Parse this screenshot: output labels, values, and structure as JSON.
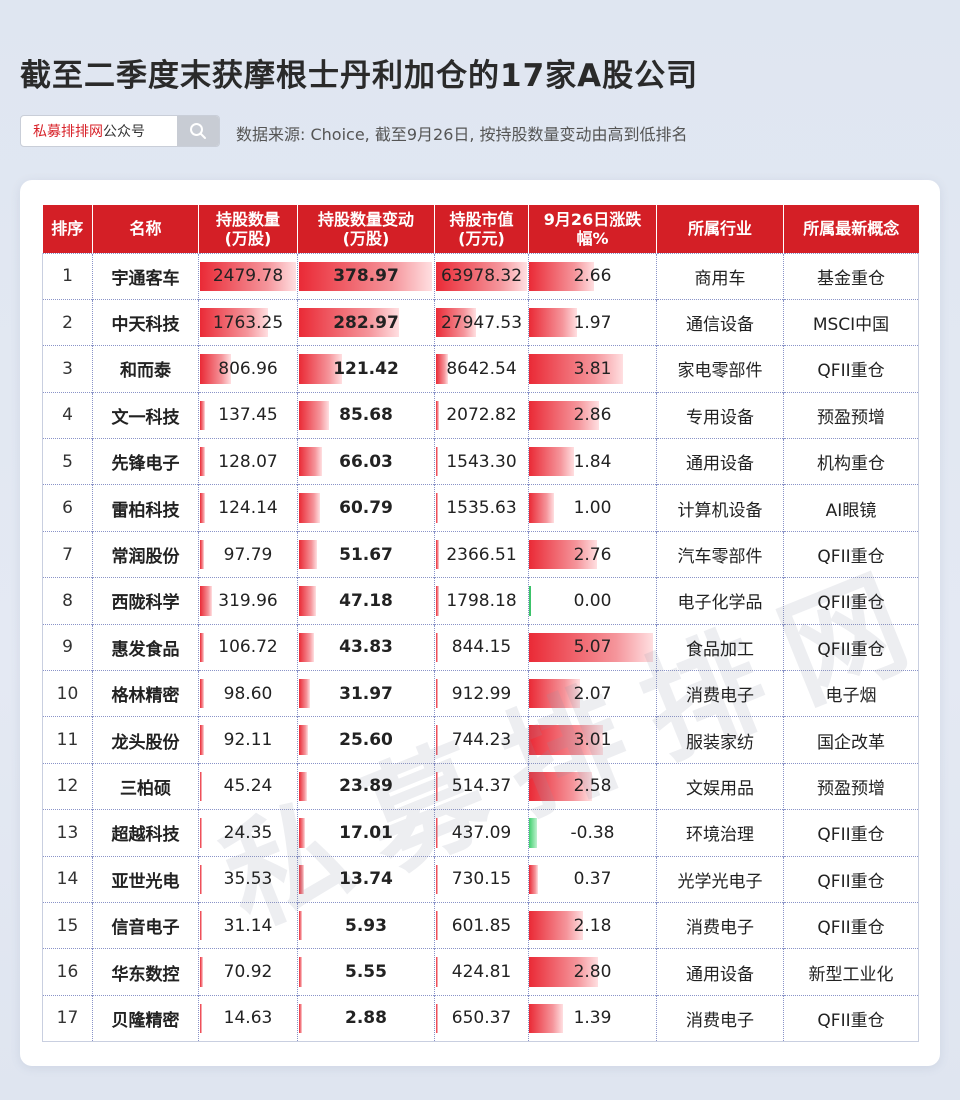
{
  "title": "截至二季度末获摩根士丹利加仓的17家A股公司",
  "search": {
    "brand": "私募排排网",
    "suffix": "公众号"
  },
  "source": "数据来源: Choice, 截至9月26日, 按持股数量变动由高到低排名",
  "watermark": "私募排排网",
  "colors": {
    "header": "#d41f26",
    "positive_bar": "#ea2a36",
    "negative_bar": "#4fd27a"
  },
  "table": {
    "headers": [
      {
        "line1": "排序",
        "line2": ""
      },
      {
        "line1": "名称",
        "line2": ""
      },
      {
        "line1": "持股数量",
        "line2": "(万股)"
      },
      {
        "line1": "持股数量变动",
        "line2": "(万股)"
      },
      {
        "line1": "持股市值",
        "line2": "(万元)"
      },
      {
        "line1": "9月26日涨跌",
        "line2": "幅%"
      },
      {
        "line1": "所属行业",
        "line2": ""
      },
      {
        "line1": "所属最新概念",
        "line2": ""
      }
    ],
    "rows": [
      {
        "rank": "1",
        "name": "宇通客车",
        "shares": "2479.78",
        "change": "378.97",
        "value": "63978.32",
        "pct": "2.66",
        "industry": "商用车",
        "concept": "基金重仓"
      },
      {
        "rank": "2",
        "name": "中天科技",
        "shares": "1763.25",
        "change": "282.97",
        "value": "27947.53",
        "pct": "1.97",
        "industry": "通信设备",
        "concept": "MSCI中国"
      },
      {
        "rank": "3",
        "name": "和而泰",
        "shares": "806.96",
        "change": "121.42",
        "value": "8642.54",
        "pct": "3.81",
        "industry": "家电零部件",
        "concept": "QFII重仓"
      },
      {
        "rank": "4",
        "name": "文一科技",
        "shares": "137.45",
        "change": "85.68",
        "value": "2072.82",
        "pct": "2.86",
        "industry": "专用设备",
        "concept": "预盈预增"
      },
      {
        "rank": "5",
        "name": "先锋电子",
        "shares": "128.07",
        "change": "66.03",
        "value": "1543.30",
        "pct": "1.84",
        "industry": "通用设备",
        "concept": "机构重仓"
      },
      {
        "rank": "6",
        "name": "雷柏科技",
        "shares": "124.14",
        "change": "60.79",
        "value": "1535.63",
        "pct": "1.00",
        "industry": "计算机设备",
        "concept": "AI眼镜"
      },
      {
        "rank": "7",
        "name": "常润股份",
        "shares": "97.79",
        "change": "51.67",
        "value": "2366.51",
        "pct": "2.76",
        "industry": "汽车零部件",
        "concept": "QFII重仓"
      },
      {
        "rank": "8",
        "name": "西陇科学",
        "shares": "319.96",
        "change": "47.18",
        "value": "1798.18",
        "pct": "0.00",
        "industry": "电子化学品",
        "concept": "QFII重仓"
      },
      {
        "rank": "9",
        "name": "惠发食品",
        "shares": "106.72",
        "change": "43.83",
        "value": "844.15",
        "pct": "5.07",
        "industry": "食品加工",
        "concept": "QFII重仓"
      },
      {
        "rank": "10",
        "name": "格林精密",
        "shares": "98.60",
        "change": "31.97",
        "value": "912.99",
        "pct": "2.07",
        "industry": "消费电子",
        "concept": "电子烟"
      },
      {
        "rank": "11",
        "name": "龙头股份",
        "shares": "92.11",
        "change": "25.60",
        "value": "744.23",
        "pct": "3.01",
        "industry": "服装家纺",
        "concept": "国企改革"
      },
      {
        "rank": "12",
        "name": "三柏硕",
        "shares": "45.24",
        "change": "23.89",
        "value": "514.37",
        "pct": "2.58",
        "industry": "文娱用品",
        "concept": "预盈预增"
      },
      {
        "rank": "13",
        "name": "超越科技",
        "shares": "24.35",
        "change": "17.01",
        "value": "437.09",
        "pct": "-0.38",
        "industry": "环境治理",
        "concept": "QFII重仓"
      },
      {
        "rank": "14",
        "name": "亚世光电",
        "shares": "35.53",
        "change": "13.74",
        "value": "730.15",
        "pct": "0.37",
        "industry": "光学光电子",
        "concept": "QFII重仓"
      },
      {
        "rank": "15",
        "name": "信音电子",
        "shares": "31.14",
        "change": "5.93",
        "value": "601.85",
        "pct": "2.18",
        "industry": "消费电子",
        "concept": "QFII重仓"
      },
      {
        "rank": "16",
        "name": "华东数控",
        "shares": "70.92",
        "change": "5.55",
        "value": "424.81",
        "pct": "2.80",
        "industry": "通用设备",
        "concept": "新型工业化"
      },
      {
        "rank": "17",
        "name": "贝隆精密",
        "shares": "14.63",
        "change": "2.88",
        "value": "650.37",
        "pct": "1.39",
        "industry": "消费电子",
        "concept": "QFII重仓"
      }
    ]
  }
}
